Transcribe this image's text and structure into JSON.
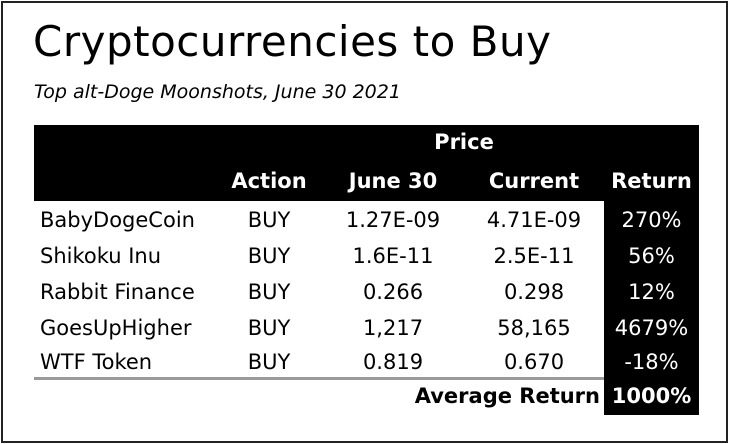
{
  "title": "Cryptocurrencies to Buy",
  "subtitle": "Top alt-Doge Moonshots, June 30 2021",
  "table": {
    "group_header": "Price",
    "columns": {
      "action": "Action",
      "june30": "June 30",
      "current": "Current",
      "return": "Return"
    },
    "rows": [
      {
        "name": "BabyDogeCoin",
        "action": "BUY",
        "june30": "1.27E-09",
        "current": "4.71E-09",
        "return": "270%"
      },
      {
        "name": "Shikoku Inu",
        "action": "BUY",
        "june30": "1.6E-11",
        "current": "2.5E-11",
        "return": "56%"
      },
      {
        "name": "Rabbit Finance",
        "action": "BUY",
        "june30": "0.266",
        "current": "0.298",
        "return": "12%"
      },
      {
        "name": "GoesUpHigher",
        "action": "BUY",
        "june30": "1,217",
        "current": "58,165",
        "return": "4679%"
      },
      {
        "name": "WTF Token",
        "action": "BUY",
        "june30": "0.819",
        "current": "0.670",
        "return": "-18%"
      }
    ],
    "average_label": "Average Return",
    "average_value": "1000%"
  },
  "colors": {
    "header_bg": "#000000",
    "header_text": "#ffffff",
    "rule": "#9a9a9a",
    "frame": "#222222"
  }
}
